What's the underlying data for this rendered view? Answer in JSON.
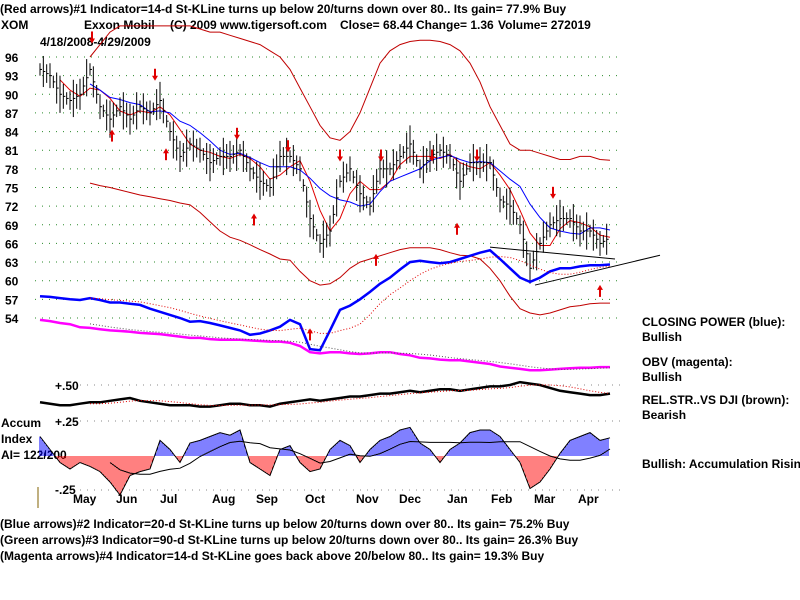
{
  "header": {
    "line1": "(Red arrows)#1 Indicator=14-d St-KLine turns up below 20/turns down over 80.. Its gain= 77.9% Buy",
    "symbol": "XOM",
    "company": "Exxon Mobil",
    "copyright": "(C) 2009 www.tigersoft.com",
    "close": "Close=  68.44",
    "change": "Change= 1.36",
    "volume": "Volume= 272019",
    "date_range": "4/18/2008-4/29/2009"
  },
  "side": {
    "cp_label": "CLOSING POWER (blue):",
    "cp_value": "Bullish",
    "obv_label": "OBV (magenta):",
    "obv_value": "Bullish",
    "rs_label": "REL.STR..VS DJI (brown):",
    "rs_value": "Bearish",
    "accum_status": "Bullish: Accumulation Rising"
  },
  "accum": {
    "label1": "Accum",
    "label2": "Index",
    "ai": "AI= 122/200"
  },
  "footer": {
    "line2": "(Blue arrows)#2 Indicator=20-d St-KLine turns up below 20/turns down over 80.. Its gain= 75.2% Buy",
    "line3": "(Green arrows)#3 Indicator=90-d St-KLine turns up below 20/turns down over 80.. Its gain= 26.3% Buy",
    "line4": "(Magenta arrows)#4 Indicator=14-d St-KLine goes back above 20/below 80.. Its gain= 19.3% Buy"
  },
  "chart_data": {
    "type": "line",
    "title": "XOM Exxon Mobil",
    "price_ticks": [
      96,
      93,
      90,
      87,
      84,
      81,
      78,
      75,
      72,
      69,
      66,
      63,
      60,
      57,
      54
    ],
    "rs_ticks": [
      "+.50",
      "+.25"
    ],
    "accum_ticks": [
      "-.25"
    ],
    "months": [
      "May",
      "Jun",
      "Jul",
      "Aug",
      "Sep",
      "Oct",
      "Nov",
      "Dec",
      "Jan",
      "Feb",
      "Mar",
      "Apr"
    ],
    "price": [
      94,
      93,
      90,
      89,
      90,
      94,
      88,
      86,
      88,
      86,
      88,
      87,
      89,
      84,
      80,
      82,
      81,
      79,
      80,
      80,
      81,
      78,
      76,
      75,
      80,
      80,
      78,
      70,
      66,
      68,
      76,
      78,
      74,
      72,
      78,
      78,
      80,
      82,
      78,
      80,
      81,
      80,
      76,
      79,
      79,
      79,
      73,
      72,
      69,
      62,
      66,
      69,
      70,
      70,
      68,
      68,
      66,
      67
    ],
    "ma_windows": [
      3,
      6
    ],
    "upper_band": [
      null,
      null,
      null,
      null,
      null,
      96,
      98,
      100,
      101,
      101,
      101,
      101,
      101,
      101,
      101,
      101,
      100.5,
      100,
      100,
      99.5,
      99,
      98.5,
      98,
      97,
      96,
      94,
      91,
      88,
      85,
      83,
      82.6,
      84,
      87,
      91,
      95,
      97,
      98,
      98.5,
      98.7,
      98.7,
      98.5,
      98,
      97,
      95,
      92,
      88,
      85,
      82,
      81,
      81,
      80.5,
      80,
      79.5,
      79.5,
      80,
      80,
      79.5,
      79.4
    ],
    "lower_band": [
      null,
      null,
      null,
      null,
      null,
      75.7,
      75.3,
      75,
      74.6,
      74.2,
      73.8,
      73.5,
      73.2,
      72.9,
      72.5,
      72.2,
      71,
      69.5,
      68,
      67,
      66.5,
      65.8,
      65,
      64.3,
      63.5,
      63.3,
      61.5,
      60,
      59.3,
      59.5,
      60.5,
      62,
      63,
      63.5,
      64,
      64.5,
      65,
      65.3,
      65.3,
      65.3,
      65,
      64.5,
      64.1,
      64,
      63.5,
      62,
      60,
      57.5,
      55.5,
      54.8,
      54.5,
      54.8,
      55.3,
      55.8,
      56,
      56.3,
      56.4,
      56.4
    ],
    "closing_power": [
      57.5,
      57.4,
      57.2,
      57,
      56.9,
      57.2,
      56.9,
      56.5,
      56.5,
      56.3,
      56.1,
      55.5,
      55,
      54.5,
      54,
      53.4,
      53.5,
      53.2,
      52.8,
      52.4,
      52,
      51.3,
      51.5,
      52,
      52.6,
      53.7,
      53,
      49,
      48.8,
      52,
      55.3,
      56,
      57,
      58.2,
      59.5,
      60.5,
      61.8,
      63,
      63.2,
      63,
      62.8,
      63,
      63.5,
      64,
      64.5,
      64.9,
      63.5,
      62,
      60.5,
      59.8,
      60.5,
      61.5,
      62,
      62,
      62.3,
      62.5,
      62.5,
      62.6
    ],
    "obv": [
      53.7,
      53.5,
      53.2,
      53,
      52.5,
      52.4,
      52.2,
      52,
      51.9,
      51.8,
      51.6,
      51.5,
      51.4,
      51.2,
      51,
      50.8,
      50.8,
      50.6,
      50.5,
      50.5,
      50.5,
      50.4,
      50.3,
      50.2,
      50.2,
      50,
      49.5,
      48.5,
      48.3,
      48.5,
      48.5,
      48.3,
      48.2,
      48.3,
      48.5,
      48.5,
      48.2,
      48,
      47.6,
      47.5,
      47.3,
      47.2,
      47.2,
      47,
      46.8,
      46.6,
      46.2,
      46,
      45.8,
      45.6,
      45.6,
      45.7,
      45.8,
      45.9,
      46,
      46,
      46.1,
      46.1
    ],
    "rel_strength": [
      0.38,
      0.37,
      0.36,
      0.36,
      0.37,
      0.38,
      0.38,
      0.39,
      0.4,
      0.41,
      0.39,
      0.38,
      0.37,
      0.36,
      0.36,
      0.36,
      0.35,
      0.35,
      0.36,
      0.37,
      0.37,
      0.36,
      0.36,
      0.35,
      0.37,
      0.38,
      0.39,
      0.4,
      0.39,
      0.4,
      0.41,
      0.42,
      0.42,
      0.43,
      0.44,
      0.44,
      0.45,
      0.46,
      0.45,
      0.46,
      0.47,
      0.47,
      0.46,
      0.47,
      0.48,
      0.49,
      0.49,
      0.5,
      0.52,
      0.51,
      0.5,
      0.48,
      0.46,
      0.45,
      0.44,
      0.43,
      0.43,
      0.44
    ],
    "accum_index": [
      0.15,
      0.05,
      -0.05,
      -0.1,
      -0.05,
      -0.08,
      -0.12,
      -0.2,
      -0.3,
      -0.15,
      -0.12,
      -0.1,
      0.12,
      0.05,
      -0.05,
      0.1,
      0.12,
      0.15,
      0.18,
      0.16,
      0.2,
      -0.05,
      -0.1,
      -0.15,
      0.05,
      0.08,
      -0.05,
      -0.12,
      -0.1,
      0.05,
      0.12,
      0.08,
      -0.05,
      0.05,
      0.12,
      0.15,
      0.2,
      0.22,
      0.1,
      0.05,
      -0.05,
      0.05,
      0.1,
      0.18,
      0.2,
      0.2,
      0.15,
      0.05,
      -0.05,
      -0.25,
      -0.2,
      -0.1,
      0.02,
      0.12,
      0.15,
      0.18,
      0.12,
      0.14
    ],
    "arrows": [
      {
        "i": 5.2,
        "dir": "down",
        "p": 98.5
      },
      {
        "i": 7.2,
        "dir": "up",
        "p": 84
      },
      {
        "i": 11.5,
        "dir": "down",
        "p": 92.5
      },
      {
        "i": 12.6,
        "dir": "up",
        "p": 81
      },
      {
        "i": 19.7,
        "dir": "down",
        "p": 83
      },
      {
        "i": 21.4,
        "dir": "up",
        "p": 70.5
      },
      {
        "i": 24.8,
        "dir": "down",
        "p": 81
      },
      {
        "i": 27,
        "dir": "up",
        "p": 52
      },
      {
        "i": 30,
        "dir": "down",
        "p": 79.5
      },
      {
        "i": 33.6,
        "dir": "up",
        "p": 64
      },
      {
        "i": 34.1,
        "dir": "down",
        "p": 79.5
      },
      {
        "i": 39.2,
        "dir": "down",
        "p": 79.5
      },
      {
        "i": 41.7,
        "dir": "up",
        "p": 69
      },
      {
        "i": 43.7,
        "dir": "down",
        "p": 79.5
      },
      {
        "i": 51.3,
        "dir": "down",
        "p": 73.5
      },
      {
        "i": 56,
        "dir": "up",
        "p": 59
      }
    ],
    "trendlines": [
      [
        [
          45,
          65.4
        ],
        [
          57.5,
          63.5
        ]
      ],
      [
        [
          49.5,
          59.3
        ],
        [
          62,
          64.1
        ]
      ]
    ]
  }
}
